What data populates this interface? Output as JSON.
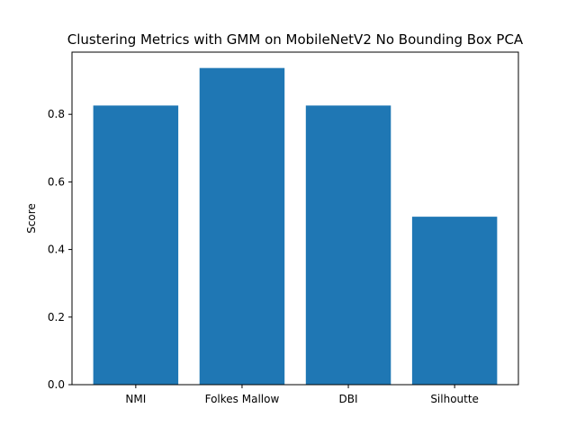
{
  "chart_data": {
    "type": "bar",
    "title": "Clustering Metrics with GMM on MobileNetV2 No Bounding Box PCA",
    "xlabel": "",
    "ylabel": "Score",
    "categories": [
      "NMI",
      "Folkes Mallow",
      "DBI",
      "Silhoutte"
    ],
    "values": [
      0.826,
      0.937,
      0.826,
      0.497
    ],
    "ylim": [
      0,
      0.984
    ],
    "yticks": [
      0.0,
      0.2,
      0.4,
      0.6,
      0.8
    ],
    "ytick_labels": [
      "0.0",
      "0.2",
      "0.4",
      "0.6",
      "0.8"
    ],
    "grid": false,
    "legend": "none",
    "bar_color": "#1f77b4"
  }
}
